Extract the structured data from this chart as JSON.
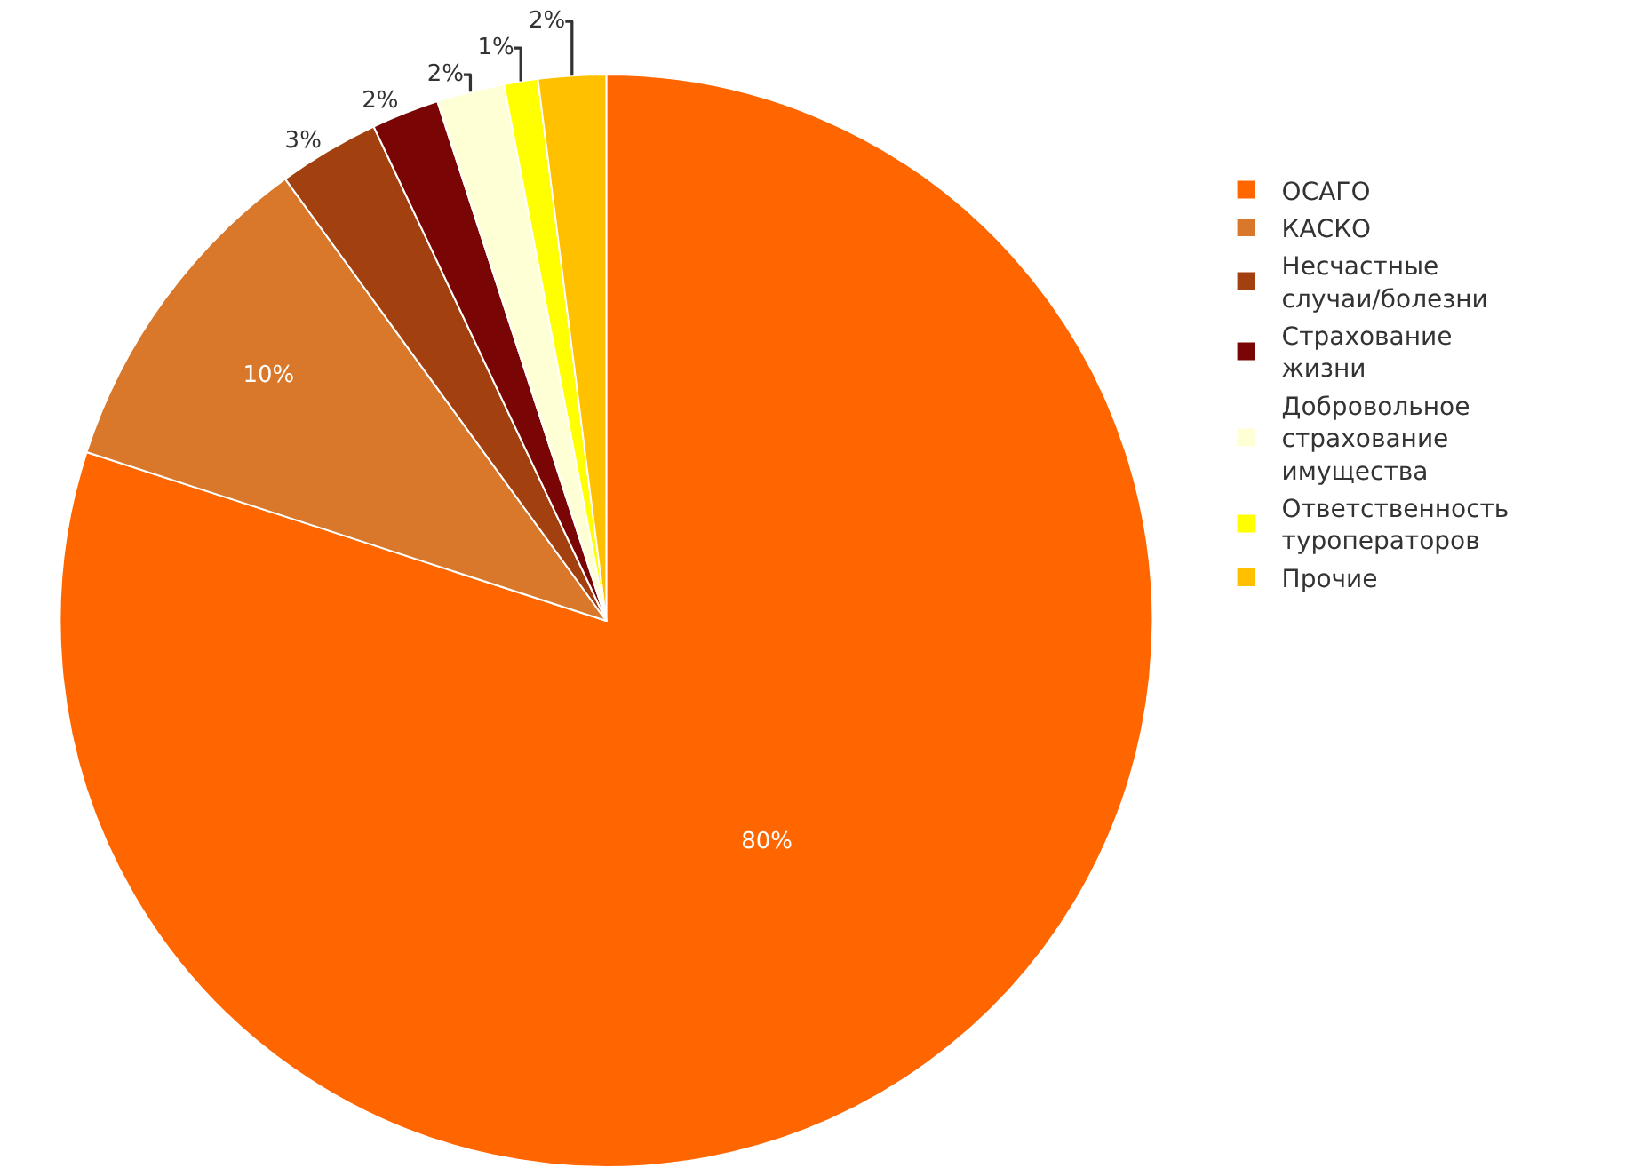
{
  "chart_data": {
    "type": "pie",
    "categories": [
      "ОСАГО",
      "КАСКО",
      "Несчастные случаи/болезни",
      "Страхование жизни",
      "Добровольное страхование имущества",
      "Ответственность туроператоров",
      "Прочие"
    ],
    "values": [
      80,
      10,
      3,
      2,
      2,
      1,
      2
    ],
    "value_labels": [
      "80%",
      "10%",
      "3%",
      "2%",
      "2%",
      "1%",
      "2%"
    ],
    "colors": [
      "#ff6600",
      "#d9782a",
      "#a3400f",
      "#7a0505",
      "#ffffd5",
      "#ffff00",
      "#ffc000"
    ],
    "legend": "right"
  }
}
